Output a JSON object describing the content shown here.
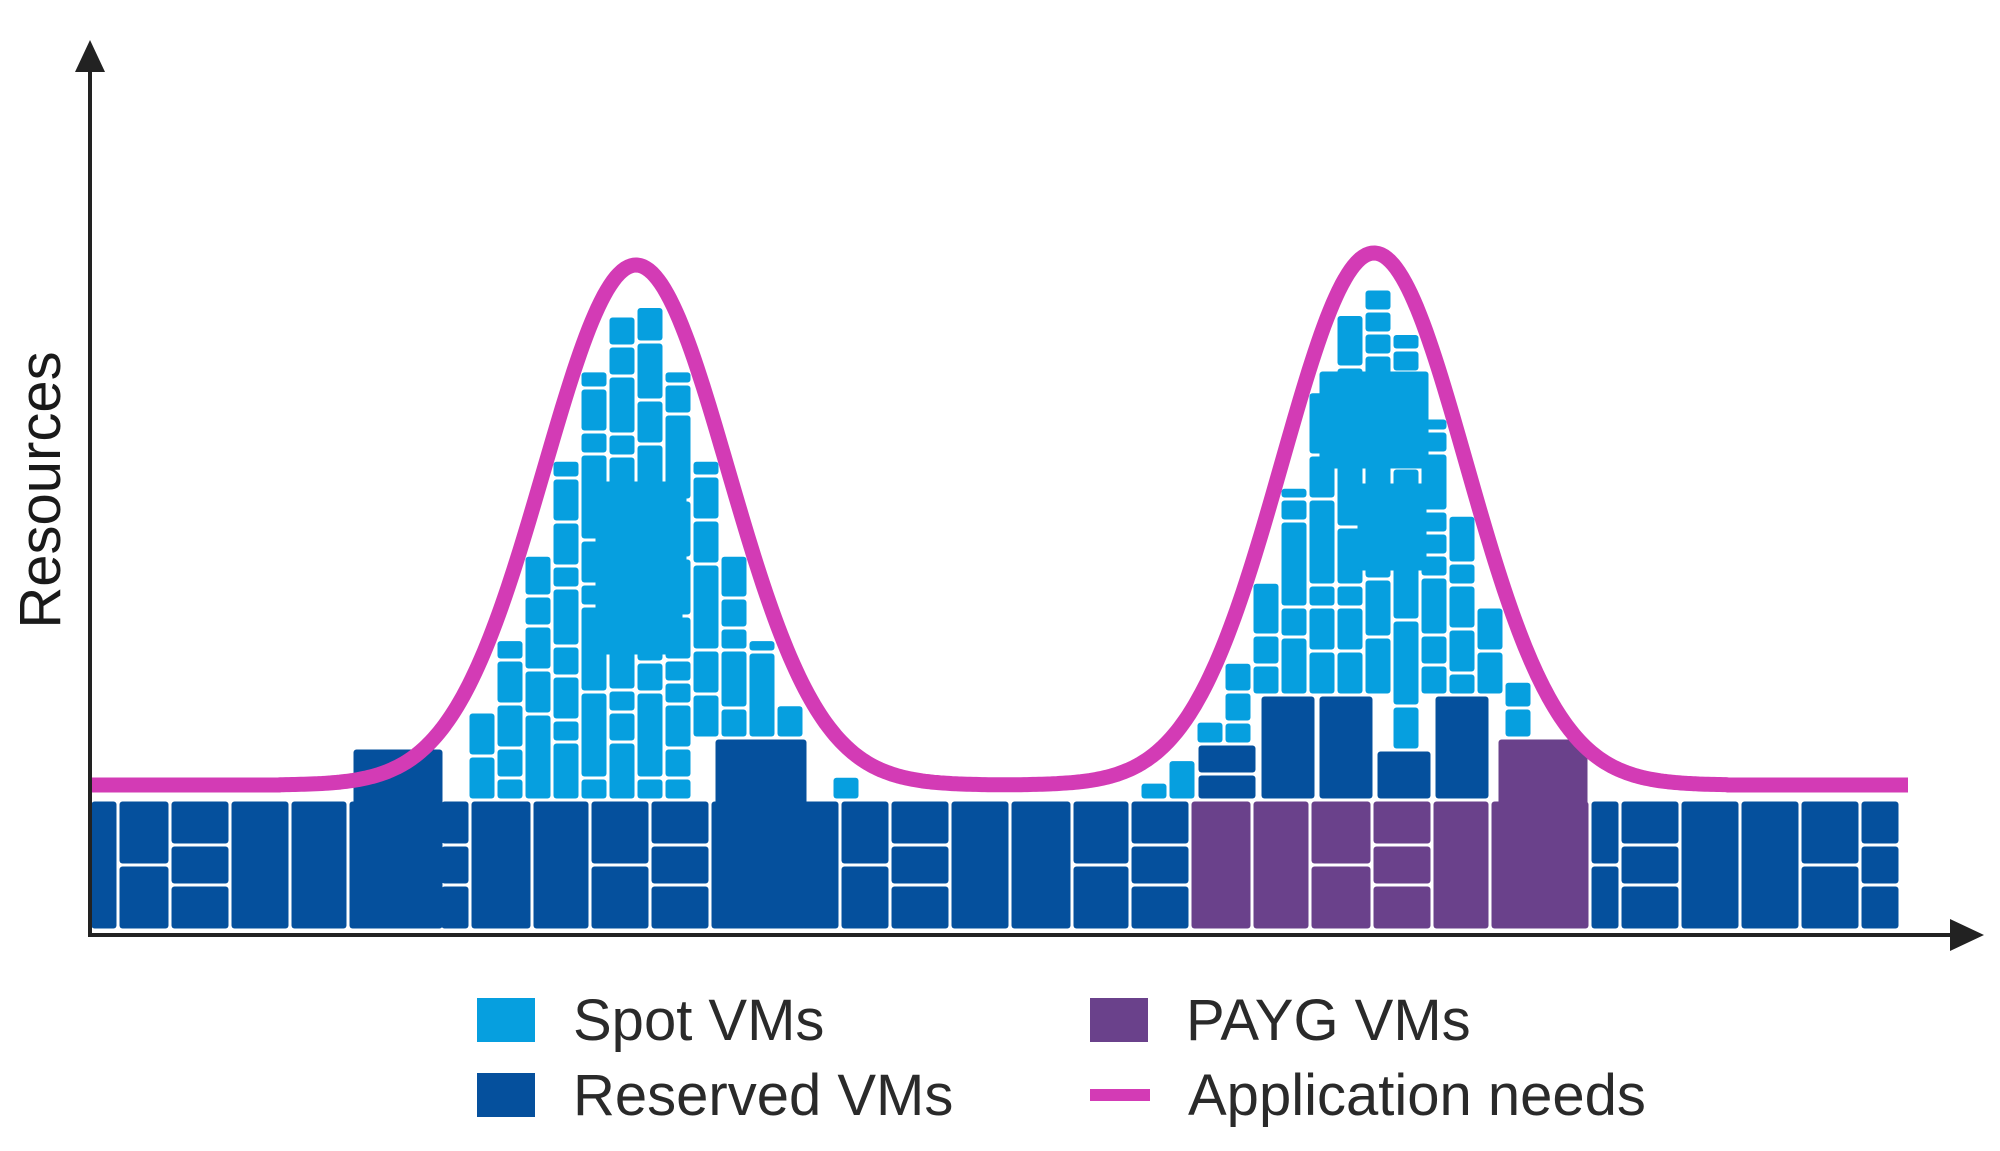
{
  "diagram": {
    "y_axis_label": "Resources",
    "x_axis_label": "",
    "colors": {
      "spot": "#069FDF",
      "reserved": "#05509D",
      "payg": "#6A418B",
      "application": "#D33BB5",
      "axis": "#222222"
    },
    "series": [
      {
        "key": "spot",
        "label": "Spot VMs"
      },
      {
        "key": "reserved",
        "label": "Reserved VMs"
      },
      {
        "key": "payg",
        "label": "PAYG VMs"
      },
      {
        "key": "application",
        "label": "Application needs"
      }
    ]
  },
  "legend": {
    "spot": "Spot VMs",
    "reserved": "Reserved VMs",
    "payg": "PAYG VMs",
    "application": "Application needs"
  }
}
